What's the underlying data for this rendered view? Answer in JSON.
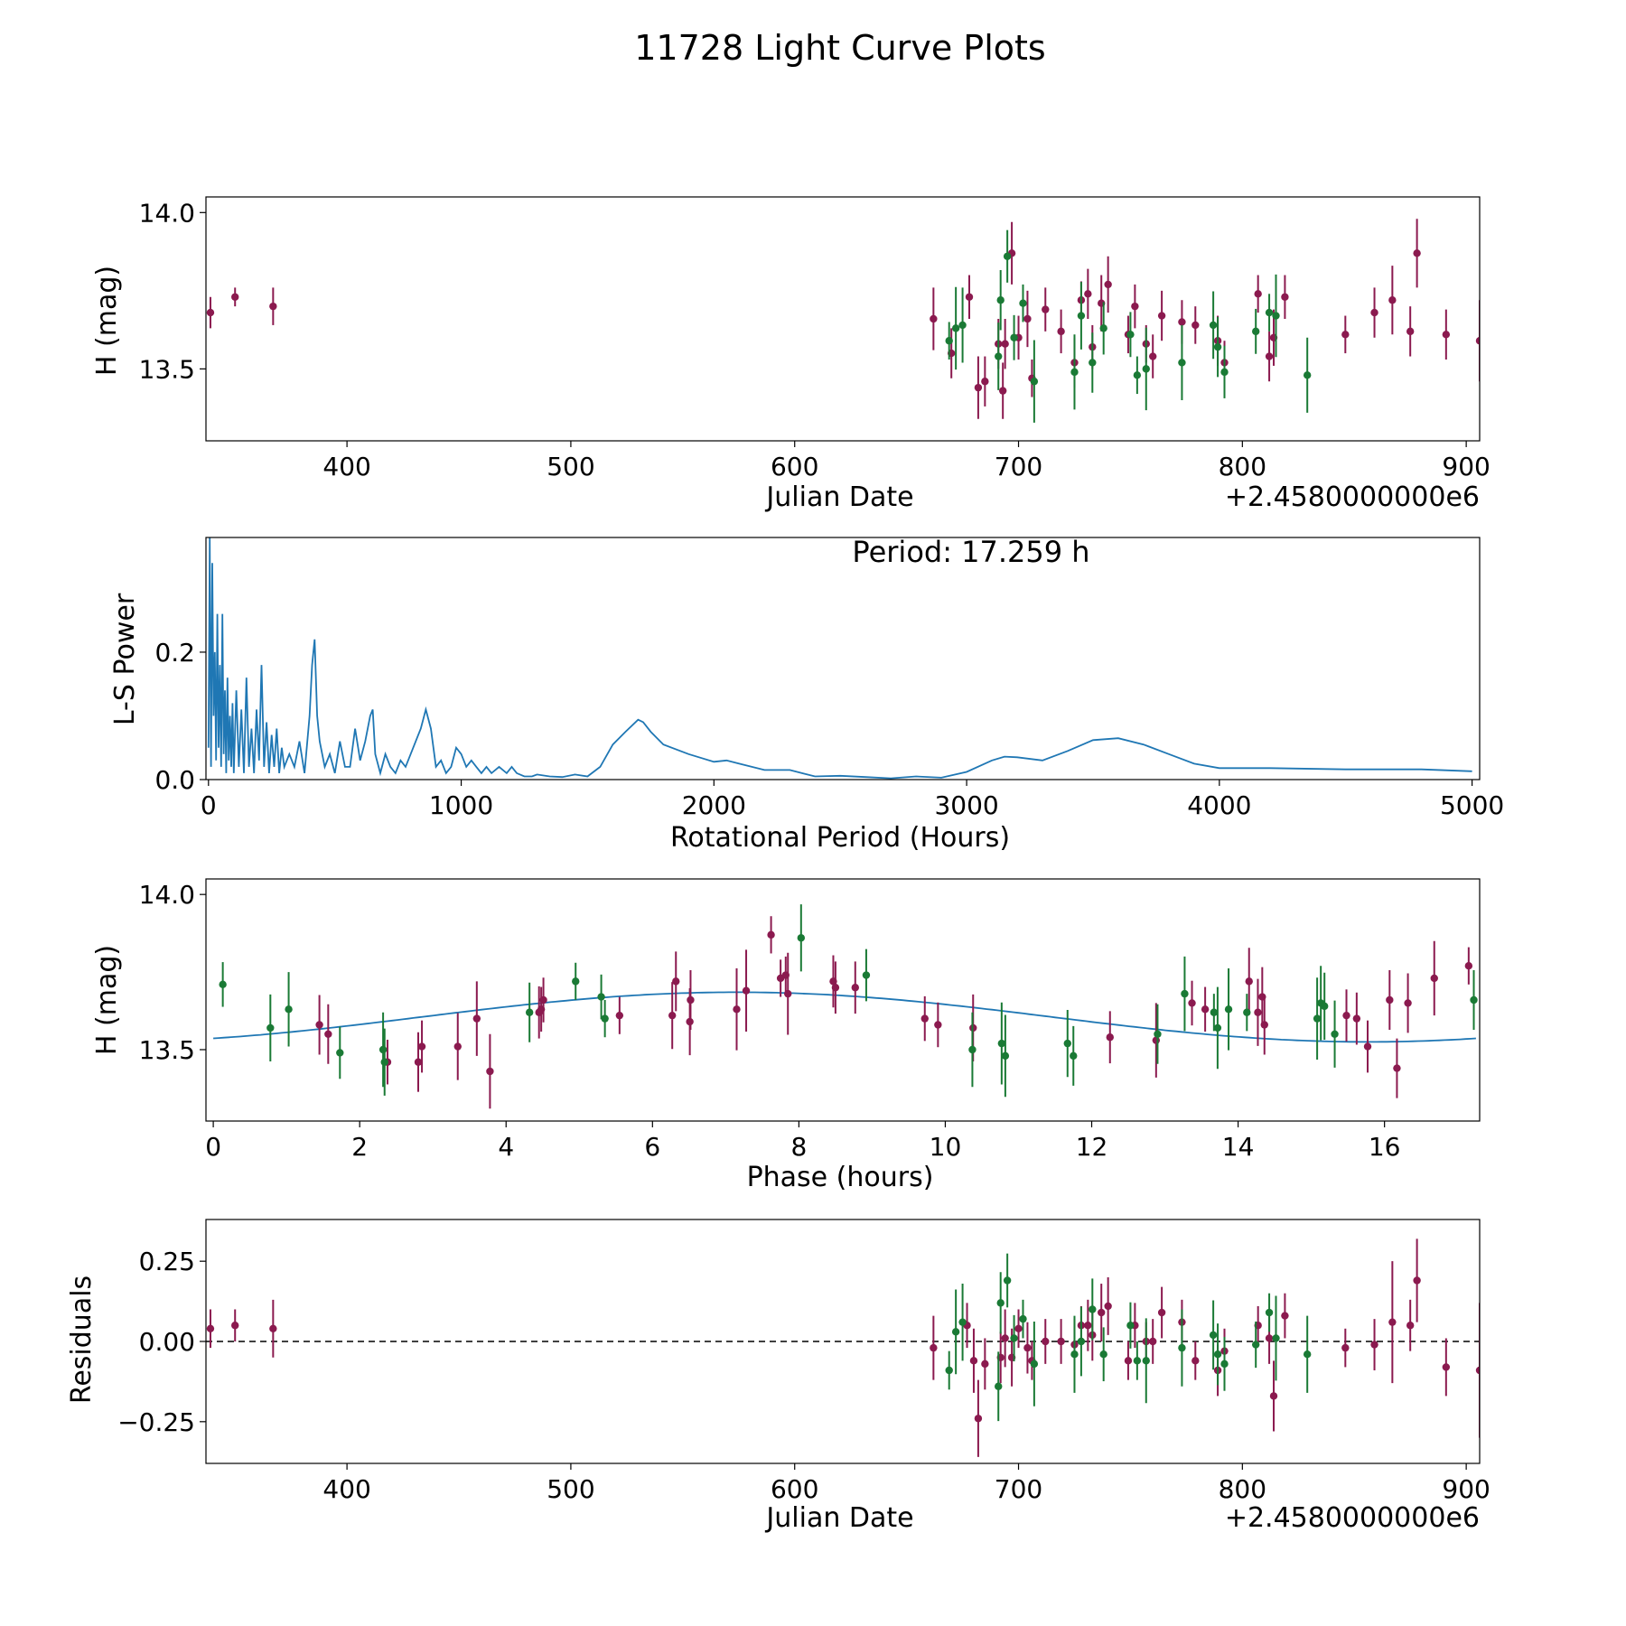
{
  "figure": {
    "title": "11728 Light Curve Plots"
  },
  "colors": {
    "observations_a": "#8B1A4F",
    "observations_b": "#1A7A35",
    "periodogram": "#1F77B4",
    "fit": "#1F77B4",
    "zero_line": "#000000"
  },
  "chart_data": [
    {
      "id": "lightcurve",
      "type": "scatter",
      "xlabel": "Julian Date",
      "ylabel": "H (mag)",
      "offset_label": "+2.4580000000e6",
      "xlim": [
        337,
        906
      ],
      "ylim": [
        13.27,
        14.05
      ],
      "xticks": [
        400,
        500,
        600,
        700,
        800,
        900
      ],
      "xtick_labels": [
        "400",
        "500",
        "600",
        "700",
        "800",
        "900"
      ],
      "yticks": [
        13.5,
        14.0
      ],
      "ytick_labels": [
        "13.5",
        "14.0"
      ],
      "series": [
        {
          "name": "magenta observations",
          "color_key": "observations_a",
          "x": [
            339,
            350,
            367,
            662,
            670,
            678,
            682,
            685,
            691,
            693,
            694,
            697,
            700,
            704,
            706,
            712,
            719,
            725,
            728,
            731,
            733,
            737,
            740,
            749,
            752,
            757,
            760,
            764,
            773,
            779,
            789,
            792,
            807,
            812,
            814,
            819,
            846,
            859,
            867,
            875,
            878,
            891,
            906
          ],
          "y": [
            13.68,
            13.73,
            13.7,
            13.66,
            13.55,
            13.73,
            13.44,
            13.46,
            13.58,
            13.43,
            13.58,
            13.87,
            13.6,
            13.66,
            13.47,
            13.69,
            13.62,
            13.52,
            13.72,
            13.74,
            13.57,
            13.71,
            13.77,
            13.61,
            13.7,
            13.58,
            13.54,
            13.67,
            13.65,
            13.64,
            13.59,
            13.52,
            13.74,
            13.54,
            13.6,
            13.73,
            13.61,
            13.68,
            13.72,
            13.62,
            13.87,
            13.61,
            13.59
          ],
          "yerr": [
            0.05,
            0.03,
            0.06,
            0.1,
            0.08,
            0.07,
            0.1,
            0.08,
            0.08,
            0.09,
            0.08,
            0.1,
            0.07,
            0.09,
            0.06,
            0.07,
            0.07,
            0.08,
            0.06,
            0.08,
            0.07,
            0.09,
            0.09,
            0.06,
            0.07,
            0.06,
            0.07,
            0.08,
            0.07,
            0.06,
            0.08,
            0.07,
            0.06,
            0.08,
            0.09,
            0.07,
            0.06,
            0.08,
            0.11,
            0.08,
            0.11,
            0.08,
            0.13
          ]
        },
        {
          "name": "green observations",
          "color_key": "observations_b",
          "x": [
            669,
            672,
            675,
            691,
            692,
            695,
            698,
            702,
            707,
            725,
            728,
            733,
            738,
            750,
            753,
            757,
            773,
            787,
            789,
            792,
            806,
            812,
            815,
            829
          ],
          "y": [
            13.59,
            13.63,
            13.64,
            13.54,
            13.72,
            13.86,
            13.6,
            13.71,
            13.46,
            13.49,
            13.67,
            13.52,
            13.63,
            13.61,
            13.48,
            13.5,
            13.52,
            13.64,
            13.57,
            13.49,
            13.62,
            13.68,
            13.67,
            13.48
          ]
        }
      ]
    },
    {
      "id": "periodogram",
      "type": "line",
      "xlabel": "Rotational Period (Hours)",
      "ylabel": "L-S Power",
      "annotation": "Period: 17.259 h",
      "xlim": [
        -10,
        5030
      ],
      "ylim": [
        0,
        0.38
      ],
      "xticks": [
        0,
        1000,
        2000,
        3000,
        4000,
        5000
      ],
      "xtick_labels": [
        "0",
        "1000",
        "2000",
        "3000",
        "4000",
        "5000"
      ],
      "yticks": [
        0.0,
        0.2
      ],
      "ytick_labels": [
        "0.0",
        "0.2"
      ],
      "x": [
        0,
        5,
        10,
        15,
        20,
        25,
        30,
        35,
        40,
        45,
        50,
        55,
        60,
        65,
        70,
        75,
        80,
        85,
        90,
        95,
        100,
        110,
        120,
        130,
        140,
        150,
        160,
        170,
        180,
        190,
        200,
        210,
        220,
        230,
        240,
        250,
        260,
        270,
        280,
        290,
        300,
        320,
        340,
        360,
        380,
        400,
        410,
        420,
        430,
        440,
        460,
        480,
        500,
        520,
        540,
        560,
        580,
        600,
        620,
        640,
        650,
        660,
        680,
        700,
        720,
        740,
        760,
        780,
        800,
        820,
        840,
        860,
        880,
        900,
        920,
        940,
        960,
        980,
        1000,
        1020,
        1040,
        1060,
        1080,
        1100,
        1120,
        1150,
        1180,
        1200,
        1220,
        1250,
        1280,
        1300,
        1350,
        1400,
        1450,
        1500,
        1550,
        1600,
        1650,
        1700,
        1720,
        1750,
        1800,
        1900,
        2000,
        2050,
        2100,
        2200,
        2300,
        2400,
        2500,
        2600,
        2700,
        2800,
        2900,
        3000,
        3100,
        3150,
        3200,
        3300,
        3400,
        3500,
        3600,
        3700,
        3800,
        3900,
        4000,
        4200,
        4500,
        4800,
        5000
      ],
      "values": [
        0.05,
        0.38,
        0.02,
        0.34,
        0.1,
        0.2,
        0.03,
        0.26,
        0.05,
        0.18,
        0.02,
        0.26,
        0.04,
        0.14,
        0.01,
        0.16,
        0.03,
        0.1,
        0.02,
        0.12,
        0.01,
        0.14,
        0.02,
        0.11,
        0.01,
        0.16,
        0.02,
        0.08,
        0.01,
        0.11,
        0.03,
        0.18,
        0.02,
        0.09,
        0.01,
        0.07,
        0.02,
        0.08,
        0.01,
        0.05,
        0.02,
        0.04,
        0.02,
        0.06,
        0.01,
        0.1,
        0.18,
        0.22,
        0.1,
        0.06,
        0.02,
        0.04,
        0.01,
        0.06,
        0.02,
        0.02,
        0.08,
        0.03,
        0.06,
        0.1,
        0.11,
        0.04,
        0.01,
        0.04,
        0.02,
        0.01,
        0.03,
        0.02,
        0.04,
        0.06,
        0.08,
        0.11,
        0.08,
        0.02,
        0.03,
        0.01,
        0.02,
        0.05,
        0.04,
        0.02,
        0.03,
        0.02,
        0.01,
        0.02,
        0.01,
        0.02,
        0.01,
        0.02,
        0.01,
        0.005,
        0.005,
        0.008,
        0.005,
        0.004,
        0.008,
        0.005,
        0.02,
        0.055,
        0.075,
        0.094,
        0.09,
        0.075,
        0.055,
        0.04,
        0.028,
        0.03,
        0.025,
        0.015,
        0.015,
        0.005,
        0.006,
        0.004,
        0.002,
        0.005,
        0.003,
        0.012,
        0.03,
        0.036,
        0.035,
        0.03,
        0.045,
        0.062,
        0.065,
        0.055,
        0.04,
        0.025,
        0.018,
        0.018,
        0.016,
        0.016,
        0.013
      ]
    },
    {
      "id": "phased",
      "type": "scatter",
      "xlabel": "Phase (hours)",
      "ylabel": "H (mag)",
      "xlim": [
        -0.1,
        17.3
      ],
      "ylim": [
        13.27,
        14.05
      ],
      "xticks": [
        0,
        2,
        4,
        6,
        8,
        10,
        12,
        14,
        16
      ],
      "xtick_labels": [
        "0",
        "2",
        "4",
        "6",
        "8",
        "10",
        "12",
        "14",
        "16"
      ],
      "yticks": [
        13.5,
        14.0
      ],
      "ytick_labels": [
        "13.5",
        "14.0"
      ],
      "fit": {
        "period": 17.259,
        "mean": 13.605,
        "amplitude": 0.08,
        "peak_phase": 7.15
      },
      "series": [
        {
          "name": "magenta observations",
          "color_key": "observations_a",
          "x": [
            1.45,
            1.57,
            2.38,
            2.8,
            2.85,
            3.34,
            3.6,
            3.78,
            4.45,
            4.48,
            4.51,
            5.55,
            6.27,
            6.32,
            6.51,
            6.52,
            7.15,
            7.28,
            7.62,
            7.75,
            7.82,
            7.85,
            8.47,
            8.5,
            8.77,
            9.72,
            9.9,
            10.38,
            12.25,
            12.88,
            13.37,
            13.55,
            14.15,
            14.27,
            14.33,
            14.36,
            15.48,
            15.62,
            15.77,
            16.07,
            16.17,
            16.32,
            16.68,
            17.15
          ],
          "y": [
            13.58,
            13.55,
            13.46,
            13.46,
            13.51,
            13.51,
            13.6,
            13.43,
            13.62,
            13.63,
            13.66,
            13.61,
            13.61,
            13.72,
            13.59,
            13.66,
            13.63,
            13.69,
            13.87,
            13.73,
            13.74,
            13.68,
            13.72,
            13.7,
            13.7,
            13.6,
            13.58,
            13.57,
            13.54,
            13.53,
            13.65,
            13.63,
            13.72,
            13.62,
            13.67,
            13.58,
            13.61,
            13.6,
            13.51,
            13.66,
            13.44,
            13.65,
            13.73,
            13.77
          ]
        },
        {
          "name": "green observations",
          "color_key": "observations_b",
          "x": [
            0.13,
            0.78,
            1.03,
            1.73,
            2.32,
            2.34,
            4.32,
            4.95,
            5.3,
            5.35,
            8.03,
            8.92,
            10.37,
            10.77,
            10.82,
            11.67,
            11.75,
            12.9,
            13.27,
            13.67,
            13.72,
            13.87,
            14.12,
            15.08,
            15.13,
            15.18,
            15.32,
            17.22
          ],
          "y": [
            13.71,
            13.57,
            13.63,
            13.49,
            13.5,
            13.46,
            13.62,
            13.72,
            13.67,
            13.6,
            13.86,
            13.74,
            13.5,
            13.52,
            13.48,
            13.52,
            13.48,
            13.55,
            13.68,
            13.62,
            13.57,
            13.63,
            13.62,
            13.6,
            13.65,
            13.64,
            13.55,
            13.66
          ]
        }
      ]
    },
    {
      "id": "residuals",
      "type": "scatter",
      "xlabel": "Julian Date",
      "ylabel": "Residuals",
      "offset_label": "+2.4580000000e6",
      "xlim": [
        337,
        906
      ],
      "ylim": [
        -0.38,
        0.38
      ],
      "xticks": [
        400,
        500,
        600,
        700,
        800,
        900
      ],
      "xtick_labels": [
        "400",
        "500",
        "600",
        "700",
        "800",
        "900"
      ],
      "yticks": [
        -0.25,
        0.0,
        0.25
      ],
      "ytick_labels": [
        "−0.25",
        "0.00",
        "0.25"
      ],
      "series": [
        {
          "name": "magenta residuals",
          "color_key": "observations_a",
          "x": [
            339,
            350,
            367,
            662,
            677,
            680,
            682,
            685,
            692,
            694,
            697,
            700,
            704,
            706,
            712,
            719,
            725,
            728,
            731,
            733,
            737,
            740,
            749,
            752,
            757,
            760,
            764,
            773,
            779,
            789,
            792,
            807,
            812,
            814,
            819,
            846,
            859,
            867,
            875,
            878,
            891,
            906
          ],
          "y": [
            0.04,
            0.05,
            0.04,
            -0.02,
            0.05,
            -0.06,
            -0.24,
            -0.07,
            -0.05,
            0.01,
            -0.05,
            0.04,
            -0.02,
            -0.06,
            0.0,
            0.0,
            -0.01,
            0.05,
            0.05,
            0.02,
            0.09,
            0.11,
            -0.06,
            0.05,
            0.0,
            0.0,
            0.09,
            0.06,
            -0.06,
            -0.09,
            -0.03,
            0.05,
            0.01,
            -0.17,
            0.08,
            -0.02,
            -0.01,
            0.06,
            0.05,
            0.19,
            -0.08,
            -0.09
          ],
          "yerr": [
            0.06,
            0.05,
            0.09,
            0.1,
            0.07,
            0.1,
            0.12,
            0.08,
            0.08,
            0.09,
            0.09,
            0.06,
            0.08,
            0.06,
            0.07,
            0.07,
            0.08,
            0.06,
            0.08,
            0.08,
            0.09,
            0.09,
            0.06,
            0.07,
            0.06,
            0.07,
            0.08,
            0.07,
            0.06,
            0.08,
            0.07,
            0.06,
            0.08,
            0.11,
            0.07,
            0.06,
            0.08,
            0.19,
            0.08,
            0.13,
            0.09,
            0.21
          ]
        },
        {
          "name": "green residuals",
          "color_key": "observations_b",
          "x": [
            669,
            672,
            675,
            691,
            692,
            695,
            698,
            702,
            707,
            725,
            728,
            733,
            738,
            750,
            753,
            757,
            773,
            787,
            789,
            792,
            806,
            812,
            815,
            829
          ],
          "y": [
            -0.09,
            0.03,
            0.06,
            -0.14,
            0.12,
            0.19,
            0.01,
            0.07,
            -0.07,
            -0.04,
            0.0,
            0.1,
            -0.04,
            0.05,
            -0.06,
            -0.06,
            -0.02,
            0.02,
            -0.04,
            -0.07,
            -0.01,
            0.09,
            0.01,
            -0.04
          ]
        }
      ]
    }
  ]
}
